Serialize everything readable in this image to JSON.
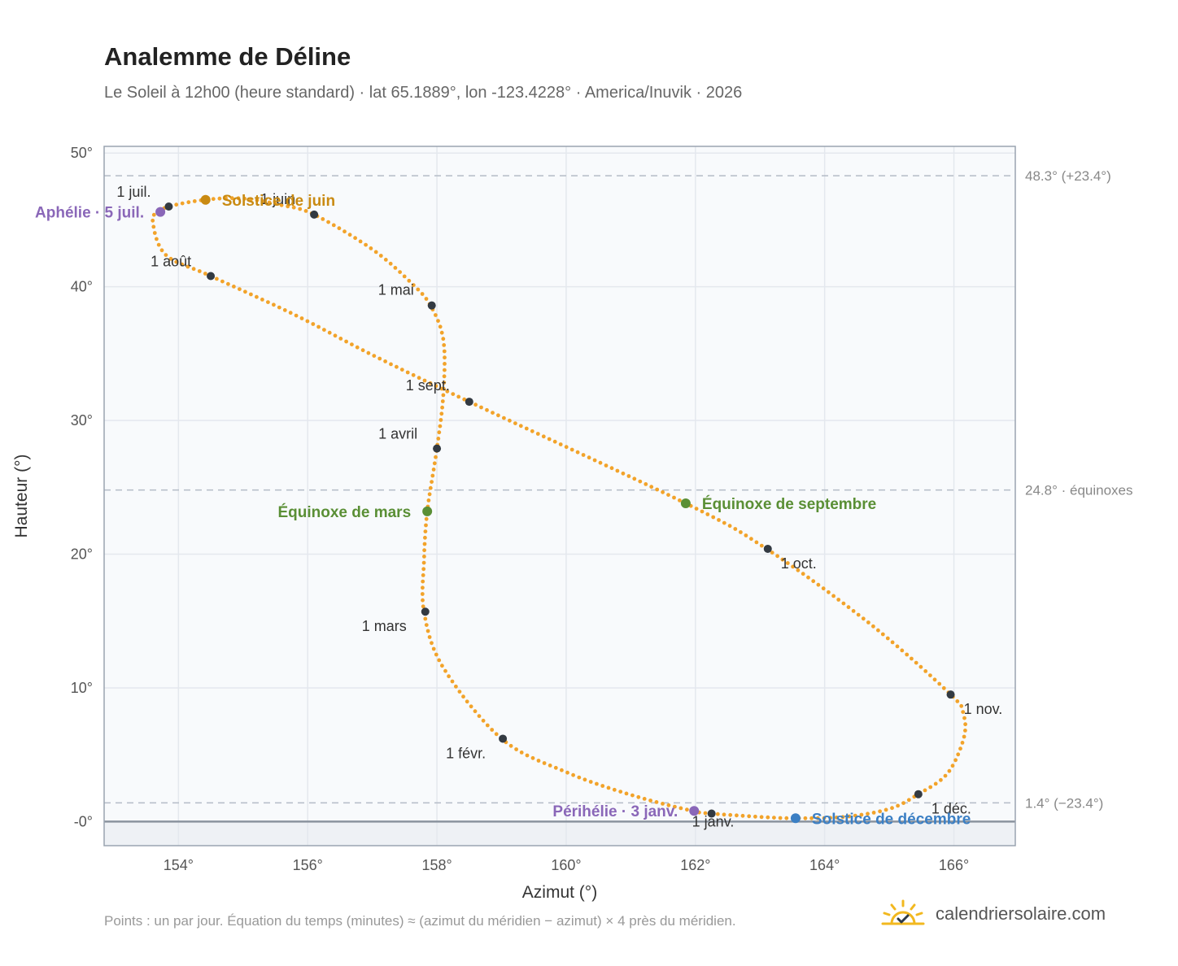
{
  "header": {
    "title": "Analemme de Déline",
    "subtitle": "Le Soleil à 12h00 (heure standard) · lat 65.1889°, lon -123.4228° · America/Inuvik · 2026"
  },
  "footer": {
    "note": "Points : un par jour. Équation du temps (minutes) ≈ (azimut du méridien − azimut) × 4 près du méridien.",
    "brand": "calendriersolaire.com"
  },
  "colors": {
    "curve": "#f2a32a",
    "month_marker": "#333a42",
    "june_solstice": "#c98a12",
    "december_solstice": "#3b7fc4",
    "equinox": "#5a8f35",
    "apsis": "#8a67b8",
    "plot_bg": "#f8fafc",
    "grid": "#e4e8ee",
    "reference_line": "#b4bcc6"
  },
  "chart_data": {
    "type": "scatter",
    "title": "Analemme de Déline",
    "xlabel": "Azimut (°)",
    "ylabel": "Hauteur (°)",
    "xlim": [
      152.85,
      166.95
    ],
    "ylim": [
      -1.8,
      50.5
    ],
    "grid": true,
    "x_ticks": [
      154,
      156,
      158,
      160,
      162,
      164,
      166
    ],
    "x_tick_labels": [
      "154°",
      "156°",
      "158°",
      "160°",
      "162°",
      "164°",
      "166°"
    ],
    "y_ticks": [
      0,
      10,
      20,
      30,
      40,
      50
    ],
    "y_tick_labels": [
      "-0°",
      "10°",
      "20°",
      "30°",
      "40°",
      "50°"
    ],
    "horizon_altitude": 0,
    "reference_lines": [
      {
        "y": 48.3,
        "label": "48.3° (+23.4°)"
      },
      {
        "y": 24.8,
        "label": "24.8° · équinoxes"
      },
      {
        "y": 1.4,
        "label": "1.4° (−23.4°)"
      }
    ],
    "series": [
      {
        "type": "daily-points",
        "points": [
          [
            162.25,
            0.6
          ],
          [
            163.0,
            0.35
          ],
          [
            163.55,
            0.25
          ],
          [
            164.3,
            0.35
          ],
          [
            165.0,
            0.95
          ],
          [
            165.45,
            2.05
          ],
          [
            165.9,
            3.6
          ],
          [
            166.15,
            6.2
          ],
          [
            166.15,
            8.0
          ],
          [
            165.95,
            9.5
          ],
          [
            164.7,
            14.8
          ],
          [
            163.1,
            20.4
          ],
          [
            161.85,
            23.8
          ],
          [
            158.5,
            31.4
          ],
          [
            157.0,
            34.9
          ],
          [
            155.8,
            37.9
          ],
          [
            154.5,
            40.8
          ],
          [
            153.8,
            42.4
          ],
          [
            153.6,
            45.0
          ],
          [
            153.72,
            45.6
          ],
          [
            153.85,
            46.0
          ],
          [
            154.4,
            46.5
          ],
          [
            155.0,
            46.6
          ],
          [
            155.6,
            46.1
          ],
          [
            156.1,
            45.4
          ],
          [
            157.0,
            42.8
          ],
          [
            157.6,
            40.3
          ],
          [
            157.9,
            38.6
          ],
          [
            158.1,
            36.0
          ],
          [
            158.1,
            32.0
          ],
          [
            158.0,
            27.9
          ],
          [
            157.85,
            23.2
          ],
          [
            157.8,
            19.5
          ],
          [
            157.8,
            15.7
          ],
          [
            158.1,
            11.5
          ],
          [
            159.0,
            6.2
          ],
          [
            160.0,
            3.7
          ],
          [
            161.0,
            2.0
          ],
          [
            161.95,
            0.8
          ],
          [
            162.25,
            0.6
          ]
        ]
      }
    ],
    "month_markers": [
      {
        "label": "1 janv.",
        "x": 162.25,
        "y": 0.6
      },
      {
        "label": "1 févr.",
        "x": 159.02,
        "y": 6.2
      },
      {
        "label": "1 mars",
        "x": 157.82,
        "y": 15.7
      },
      {
        "label": "1 avril",
        "x": 158.0,
        "y": 27.9
      },
      {
        "label": "1 mai",
        "x": 157.92,
        "y": 38.6
      },
      {
        "label": "1 juin",
        "x": 156.1,
        "y": 45.4
      },
      {
        "label": "1 juil.",
        "x": 153.85,
        "y": 46.0
      },
      {
        "label": "1 août",
        "x": 154.5,
        "y": 40.8
      },
      {
        "label": "1 sept.",
        "x": 158.5,
        "y": 31.4
      },
      {
        "label": "1 oct.",
        "x": 163.12,
        "y": 20.4
      },
      {
        "label": "1 nov.",
        "x": 165.95,
        "y": 9.5
      },
      {
        "label": "1 déc.",
        "x": 165.45,
        "y": 2.05
      }
    ],
    "events": [
      {
        "label": "Solstice de juin",
        "x": 154.42,
        "y": 46.5,
        "color_key": "june_solstice",
        "anchor": "right"
      },
      {
        "label": "Solstice de décembre",
        "x": 163.55,
        "y": 0.25,
        "color_key": "december_solstice",
        "anchor": "right"
      },
      {
        "label": "Équinoxe de mars",
        "x": 157.85,
        "y": 23.2,
        "color_key": "equinox",
        "anchor": "left"
      },
      {
        "label": "Équinoxe de septembre",
        "x": 161.85,
        "y": 23.8,
        "color_key": "equinox",
        "anchor": "right"
      },
      {
        "label": "Aphélie · 5 juil.",
        "x": 153.72,
        "y": 45.6,
        "color_key": "apsis",
        "anchor": "left"
      },
      {
        "label": "Périhélie · 3 janv.",
        "x": 161.98,
        "y": 0.8,
        "color_key": "apsis",
        "anchor": "left"
      }
    ]
  }
}
